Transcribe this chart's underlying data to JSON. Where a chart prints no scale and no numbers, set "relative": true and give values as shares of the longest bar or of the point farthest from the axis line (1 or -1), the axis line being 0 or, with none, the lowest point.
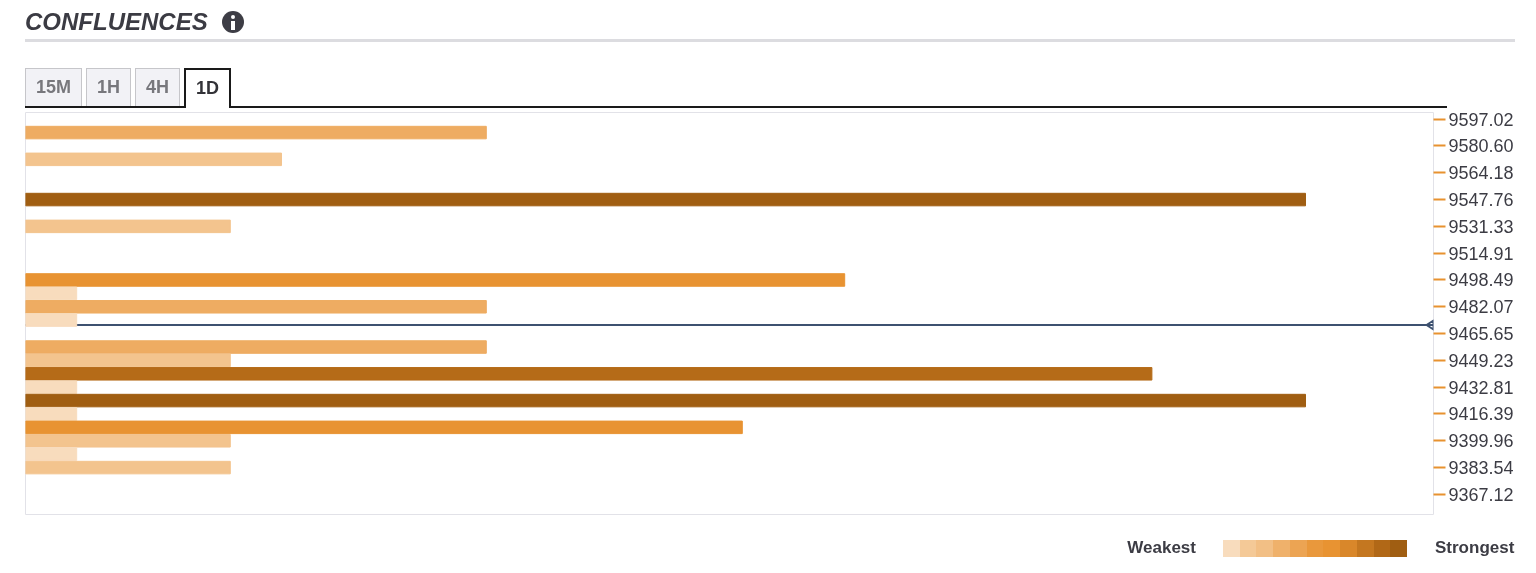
{
  "chart_data": {
    "type": "bar",
    "title": "CONFLUENCES",
    "orientation": "horizontal",
    "relative": true,
    "x": [
      9588.8,
      9572.4,
      9547.76,
      9531.33,
      9498.49,
      9490.3,
      9482.07,
      9473.9,
      9457.4,
      9449.23,
      9441.0,
      9432.81,
      9424.6,
      9416.39,
      9408.2,
      9399.96,
      9391.8,
      9383.54
    ],
    "values": [
      0.36,
      0.2,
      1,
      0.16,
      0.64,
      0.04,
      0.36,
      0.04,
      0.36,
      0.16,
      0.88,
      0.04,
      1,
      0.04,
      0.56,
      0.16,
      0.04,
      0.16
    ],
    "colors": [
      "#eeac62",
      "#f3c48e",
      "#a05e12",
      "#f3c48e",
      "#e89332",
      "#f8dcbd",
      "#eeac62",
      "#f8dcbd",
      "#eeac62",
      "#f3c48e",
      "#b56b18",
      "#f8dcbd",
      "#a05e12",
      "#f8dcbd",
      "#e89332",
      "#f3c48e",
      "#f8dcbd",
      "#f3c48e"
    ],
    "ylim": [
      9354.8,
      9601.1
    ],
    "yticks": [
      9597.02,
      {
        "value": 9580.6,
        "label": "9580.60"
      },
      9564.18,
      9547.76,
      9531.33,
      9514.91,
      9498.49,
      9482.07,
      9465.65,
      9449.23,
      9432.81,
      9416.39,
      9399.96,
      9383.54,
      9367.12
    ],
    "ref_lines": [
      {
        "axis": "y",
        "value": 9470.9,
        "color": "#3d5170"
      }
    ],
    "annotations": [
      "15M",
      "1H",
      "4H",
      "1D",
      "Weakest",
      "Strongest"
    ]
  }
}
